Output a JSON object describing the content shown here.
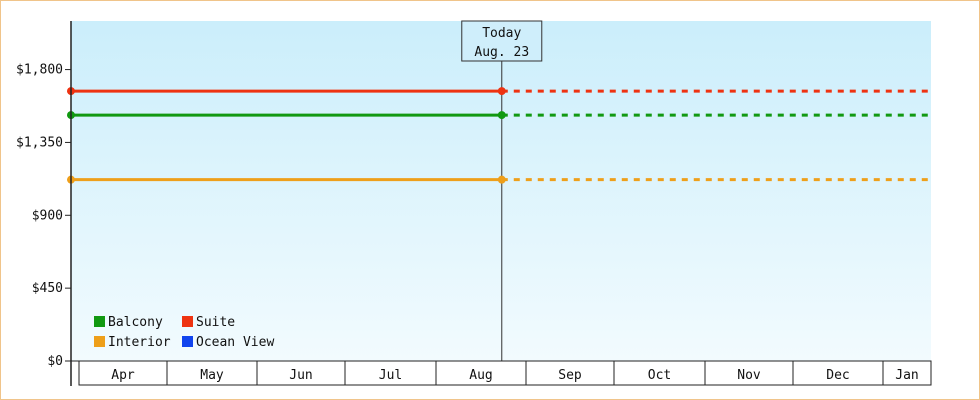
{
  "chart_data": {
    "type": "line",
    "title": "",
    "xlabel": "",
    "ylabel": "",
    "ylim": [
      0,
      2100
    ],
    "yticks": [
      0,
      450,
      900,
      1350,
      1800
    ],
    "ytick_labels": [
      "$0",
      "$450",
      "$900",
      "$1,350",
      "$1,800"
    ],
    "months": [
      "Apr",
      "May",
      "Jun",
      "Jul",
      "Aug",
      "Sep",
      "Oct",
      "Nov",
      "Dec",
      "Jan"
    ],
    "today": {
      "label": "Today",
      "date": "Aug. 23"
    },
    "grid": false,
    "legend_position": "bottom-left",
    "series": [
      {
        "name": "Balcony",
        "color": "#119911",
        "values": [
          1519,
          1519
        ],
        "projected_value": 1519
      },
      {
        "name": "Suite",
        "color": "#ee3311",
        "values": [
          1667,
          1667
        ],
        "projected_value": 1667
      },
      {
        "name": "Interior",
        "color": "#ee9f1a",
        "values": [
          1120,
          1120
        ],
        "projected_value": 1120
      },
      {
        "name": "Ocean View",
        "color": "#1144ee",
        "values": [],
        "projected_value": null
      }
    ]
  }
}
